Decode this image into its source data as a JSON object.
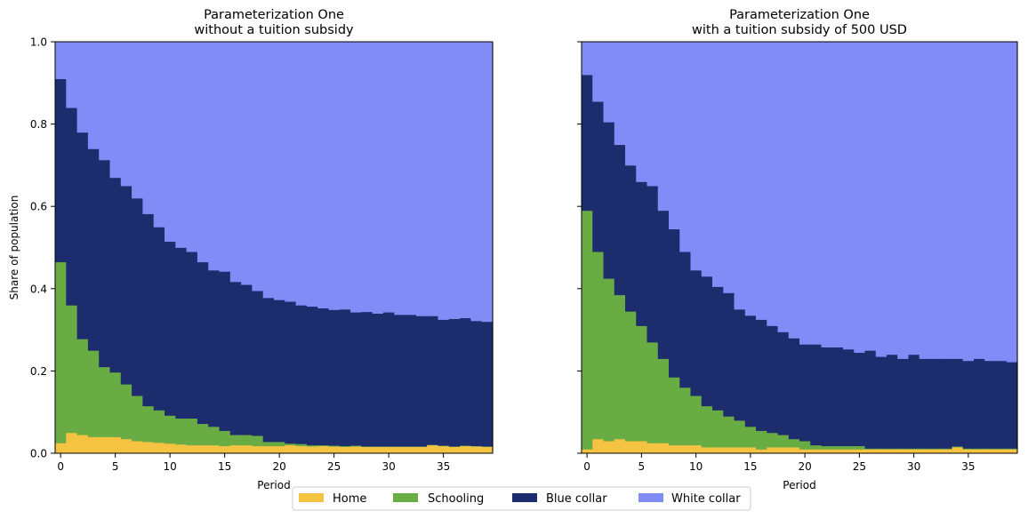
{
  "chart_data": [
    {
      "type": "bar",
      "stacked": true,
      "title": "Parameterization One\nwithout a tuition subsidy",
      "xlabel": "Period",
      "ylabel": "Share of population",
      "xlim": [
        -0.5,
        39.5
      ],
      "ylim": [
        0,
        1
      ],
      "xticks": [
        0,
        5,
        10,
        15,
        20,
        25,
        30,
        35
      ],
      "yticks": [
        "0.0",
        "0.2",
        "0.4",
        "0.6",
        "0.8",
        "1.0"
      ],
      "show_ytick_labels": true,
      "x": [
        0,
        1,
        2,
        3,
        4,
        5,
        6,
        7,
        8,
        9,
        10,
        11,
        12,
        13,
        14,
        15,
        16,
        17,
        18,
        19,
        20,
        21,
        22,
        23,
        24,
        25,
        26,
        27,
        28,
        29,
        30,
        31,
        32,
        33,
        34,
        35,
        36,
        37,
        38,
        39
      ],
      "series": [
        {
          "name": "Home",
          "color": "#f6c242",
          "values": [
            0.025,
            0.05,
            0.045,
            0.04,
            0.04,
            0.04,
            0.035,
            0.03,
            0.028,
            0.026,
            0.024,
            0.022,
            0.02,
            0.02,
            0.02,
            0.018,
            0.02,
            0.02,
            0.018,
            0.018,
            0.018,
            0.02,
            0.018,
            0.017,
            0.018,
            0.017,
            0.016,
            0.017,
            0.016,
            0.016,
            0.016,
            0.016,
            0.016,
            0.016,
            0.02,
            0.018,
            0.016,
            0.018,
            0.017,
            0.016
          ]
        },
        {
          "name": "Schooling",
          "color": "#6aac44",
          "values": [
            0.44,
            0.31,
            0.233,
            0.21,
            0.17,
            0.157,
            0.133,
            0.11,
            0.087,
            0.079,
            0.068,
            0.063,
            0.065,
            0.052,
            0.045,
            0.037,
            0.025,
            0.025,
            0.025,
            0.01,
            0.01,
            0.004,
            0.005,
            0.003,
            0.002,
            0.002,
            0.002,
            0.002,
            0.001,
            0.001,
            0.001,
            0.001,
            0.001,
            0.001,
            0.001,
            0.001,
            0.001,
            0.001,
            0.001,
            0.001
          ]
        },
        {
          "name": "Blue collar",
          "color": "#1c2c6c",
          "values": [
            0.445,
            0.48,
            0.502,
            0.49,
            0.503,
            0.473,
            0.482,
            0.48,
            0.467,
            0.445,
            0.423,
            0.415,
            0.405,
            0.393,
            0.38,
            0.387,
            0.372,
            0.365,
            0.352,
            0.35,
            0.345,
            0.345,
            0.337,
            0.337,
            0.333,
            0.33,
            0.332,
            0.324,
            0.327,
            0.323,
            0.326,
            0.32,
            0.32,
            0.317,
            0.313,
            0.306,
            0.31,
            0.31,
            0.304,
            0.303
          ]
        },
        {
          "name": "White collar",
          "color": "#828cf6",
          "values": [
            0.09,
            0.16,
            0.22,
            0.26,
            0.287,
            0.33,
            0.35,
            0.38,
            0.418,
            0.45,
            0.485,
            0.5,
            0.51,
            0.535,
            0.555,
            0.558,
            0.583,
            0.59,
            0.605,
            0.622,
            0.627,
            0.631,
            0.64,
            0.643,
            0.647,
            0.651,
            0.65,
            0.657,
            0.656,
            0.66,
            0.657,
            0.663,
            0.663,
            0.666,
            0.666,
            0.675,
            0.673,
            0.671,
            0.678,
            0.68
          ]
        }
      ]
    },
    {
      "type": "bar",
      "stacked": true,
      "title": "Parameterization One\nwith a tuition subsidy of 500 USD",
      "xlabel": "Period",
      "ylabel": "",
      "xlim": [
        -0.5,
        39.5
      ],
      "ylim": [
        0,
        1
      ],
      "xticks": [
        0,
        5,
        10,
        15,
        20,
        25,
        30,
        35
      ],
      "yticks": [
        "0.0",
        "0.2",
        "0.4",
        "0.6",
        "0.8",
        "1.0"
      ],
      "show_ytick_labels": false,
      "x": [
        0,
        1,
        2,
        3,
        4,
        5,
        6,
        7,
        8,
        9,
        10,
        11,
        12,
        13,
        14,
        15,
        16,
        17,
        18,
        19,
        20,
        21,
        22,
        23,
        24,
        25,
        26,
        27,
        28,
        29,
        30,
        31,
        32,
        33,
        34,
        35,
        36,
        37,
        38,
        39
      ],
      "series": [
        {
          "name": "Home",
          "color": "#f6c242",
          "values": [
            0.01,
            0.035,
            0.03,
            0.035,
            0.03,
            0.03,
            0.025,
            0.025,
            0.02,
            0.02,
            0.02,
            0.015,
            0.015,
            0.015,
            0.015,
            0.015,
            0.01,
            0.015,
            0.015,
            0.015,
            0.01,
            0.01,
            0.01,
            0.01,
            0.01,
            0.01,
            0.01,
            0.01,
            0.01,
            0.01,
            0.01,
            0.01,
            0.01,
            0.01,
            0.015,
            0.01,
            0.01,
            0.01,
            0.01,
            0.01
          ]
        },
        {
          "name": "Schooling",
          "color": "#6aac44",
          "values": [
            0.58,
            0.455,
            0.395,
            0.35,
            0.315,
            0.28,
            0.245,
            0.205,
            0.165,
            0.14,
            0.12,
            0.1,
            0.09,
            0.075,
            0.065,
            0.05,
            0.045,
            0.035,
            0.03,
            0.02,
            0.02,
            0.01,
            0.008,
            0.008,
            0.008,
            0.008,
            0.002,
            0.002,
            0.002,
            0.002,
            0.002,
            0.002,
            0.002,
            0.002,
            0.002,
            0.002,
            0.002,
            0.002,
            0.002,
            0.002
          ]
        },
        {
          "name": "Blue collar",
          "color": "#1c2c6c",
          "values": [
            0.33,
            0.365,
            0.38,
            0.365,
            0.355,
            0.35,
            0.38,
            0.36,
            0.36,
            0.33,
            0.305,
            0.315,
            0.3,
            0.3,
            0.27,
            0.27,
            0.27,
            0.26,
            0.25,
            0.245,
            0.235,
            0.245,
            0.24,
            0.24,
            0.235,
            0.227,
            0.238,
            0.223,
            0.228,
            0.218,
            0.228,
            0.218,
            0.218,
            0.218,
            0.213,
            0.213,
            0.218,
            0.213,
            0.213,
            0.21
          ]
        },
        {
          "name": "White collar",
          "color": "#828cf6",
          "values": [
            0.08,
            0.145,
            0.195,
            0.25,
            0.3,
            0.34,
            0.35,
            0.41,
            0.455,
            0.51,
            0.555,
            0.57,
            0.595,
            0.61,
            0.65,
            0.665,
            0.675,
            0.69,
            0.705,
            0.72,
            0.735,
            0.735,
            0.742,
            0.742,
            0.747,
            0.755,
            0.75,
            0.765,
            0.76,
            0.77,
            0.76,
            0.77,
            0.77,
            0.77,
            0.77,
            0.775,
            0.77,
            0.775,
            0.775,
            0.778
          ]
        }
      ]
    }
  ],
  "legend": {
    "placement": "bottom-center",
    "items": [
      {
        "label": "Home",
        "color": "#f6c242"
      },
      {
        "label": "Schooling",
        "color": "#6aac44"
      },
      {
        "label": "Blue collar",
        "color": "#1c2c6c"
      },
      {
        "label": "White collar",
        "color": "#828cf6"
      }
    ]
  }
}
